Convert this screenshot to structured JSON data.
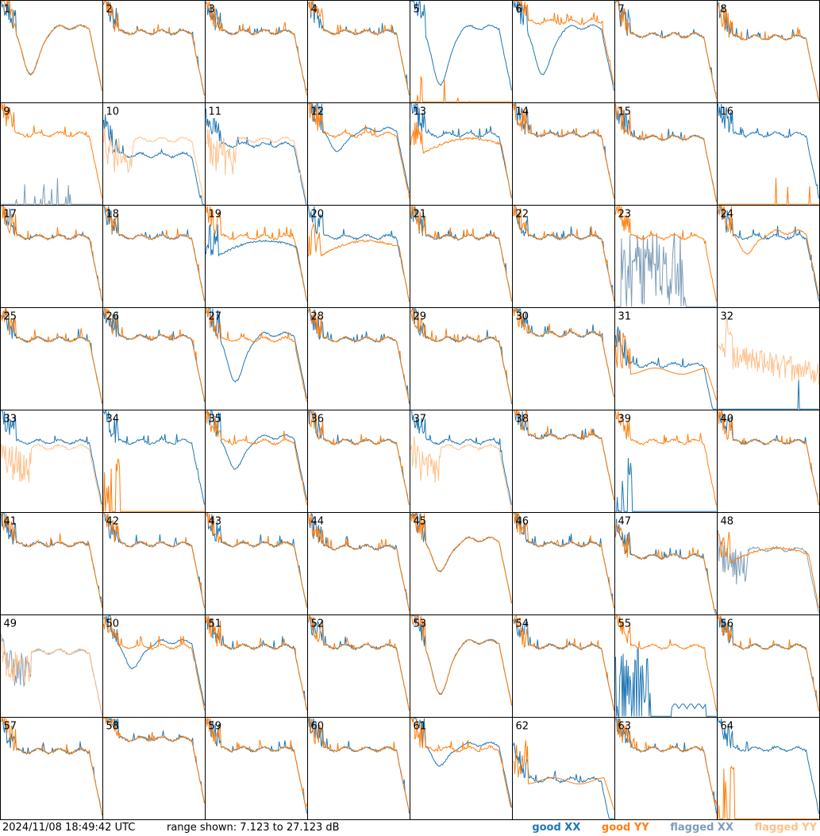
{
  "chart_data": {
    "type": "line",
    "title": "",
    "xlabel": "",
    "ylabel": "",
    "grid_rows": 8,
    "grid_cols": 8,
    "ylim_db": [
      7.123,
      27.123
    ],
    "panels": [
      {
        "id": "1",
        "xx": "bumpy",
        "yy": "bumpy",
        "dip": 0.45,
        "offset": 0.05
      },
      {
        "id": "2",
        "xx": "good",
        "yy": "good",
        "offset": 0.0
      },
      {
        "id": "3",
        "xx": "good",
        "yy": "good",
        "offset": 0.0
      },
      {
        "id": "4",
        "xx": "good",
        "yy": "good",
        "offset": 0.0
      },
      {
        "id": "5",
        "xx": "bumpy",
        "yy": "dead",
        "dip": 0.55
      },
      {
        "id": "6",
        "xx": "bumpy",
        "yy": "good",
        "dip": 0.45,
        "offset": -0.1
      },
      {
        "id": "7",
        "xx": "good",
        "yy": "good",
        "offset": 0.03
      },
      {
        "id": "8",
        "xx": "good",
        "yy": "good",
        "offset": 0.05
      },
      {
        "id": "9",
        "xx": "flagged_spikes",
        "yy": "good"
      },
      {
        "id": "10",
        "xx": "good",
        "yy": "flagged",
        "offset": 0.2
      },
      {
        "id": "11",
        "xx": "good",
        "yy": "flagged",
        "offset": 0.1
      },
      {
        "id": "12",
        "xx": "bumpy",
        "yy": "good",
        "dip": 0.2
      },
      {
        "id": "13",
        "xx": "good",
        "yy": "sloped"
      },
      {
        "id": "14",
        "xx": "good",
        "yy": "good",
        "offset": 0.0
      },
      {
        "id": "15",
        "xx": "good",
        "yy": "good",
        "offset": 0.03
      },
      {
        "id": "16",
        "xx": "good",
        "yy": "dead"
      },
      {
        "id": "17",
        "xx": "good",
        "yy": "good",
        "offset": 0.0
      },
      {
        "id": "18",
        "xx": "good",
        "yy": "good",
        "offset": 0.0
      },
      {
        "id": "19",
        "xx": "sloped",
        "yy": "good"
      },
      {
        "id": "20",
        "xx": "good",
        "yy": "sloped"
      },
      {
        "id": "21",
        "xx": "good",
        "yy": "good",
        "offset": 0.0
      },
      {
        "id": "22",
        "xx": "good",
        "yy": "good",
        "offset": 0.0
      },
      {
        "id": "23",
        "xx": "flagged_noise",
        "yy": "good"
      },
      {
        "id": "24",
        "xx": "good",
        "yy": "bumpy",
        "dip": 0.2
      },
      {
        "id": "25",
        "xx": "good",
        "yy": "good",
        "offset": 0.0
      },
      {
        "id": "26",
        "xx": "good",
        "yy": "good",
        "offset": -0.02
      },
      {
        "id": "27",
        "xx": "bumpy",
        "yy": "good",
        "dip": 0.45
      },
      {
        "id": "28",
        "xx": "good",
        "yy": "good",
        "offset": 0.0
      },
      {
        "id": "29",
        "xx": "good",
        "yy": "good",
        "offset": 0.0
      },
      {
        "id": "30",
        "xx": "good",
        "yy": "good",
        "offset": -0.05
      },
      {
        "id": "31",
        "xx": "good",
        "yy": "low",
        "offset": 0.25
      },
      {
        "id": "32",
        "xx": "dead",
        "yy": "flagged_noise2"
      },
      {
        "id": "33",
        "xx": "good",
        "yy": "flagged",
        "offset": 0.0
      },
      {
        "id": "34",
        "xx": "good",
        "yy": "dead_spike"
      },
      {
        "id": "35",
        "xx": "bumpy",
        "yy": "good",
        "dip": 0.3
      },
      {
        "id": "36",
        "xx": "good",
        "yy": "good",
        "offset": 0.0
      },
      {
        "id": "37",
        "xx": "good",
        "yy": "flagged",
        "offset": 0.0
      },
      {
        "id": "38",
        "xx": "good",
        "yy": "good",
        "offset": -0.05
      },
      {
        "id": "39",
        "xx": "dead_spike",
        "yy": "good"
      },
      {
        "id": "40",
        "xx": "good",
        "yy": "good",
        "offset": 0.0
      },
      {
        "id": "41",
        "xx": "good",
        "yy": "good",
        "offset": 0.0
      },
      {
        "id": "42",
        "xx": "good",
        "yy": "good",
        "offset": 0.0
      },
      {
        "id": "43",
        "xx": "good",
        "yy": "good",
        "offset": 0.0
      },
      {
        "id": "44",
        "xx": "good",
        "yy": "good",
        "offset": 0.03
      },
      {
        "id": "45",
        "xx": "bumpy",
        "yy": "bumpy",
        "dip": 0.3
      },
      {
        "id": "46",
        "xx": "good",
        "yy": "good",
        "offset": 0.0
      },
      {
        "id": "47",
        "xx": "good",
        "yy": "good",
        "offset": 0.12
      },
      {
        "id": "48",
        "xx": "flagged",
        "yy": "sloped"
      },
      {
        "id": "49",
        "xx": "flagged",
        "yy": "flagged",
        "offset": 0.0
      },
      {
        "id": "50",
        "xx": "bumpy",
        "yy": "good",
        "dip": 0.25
      },
      {
        "id": "51",
        "xx": "good",
        "yy": "good",
        "offset": 0.0
      },
      {
        "id": "52",
        "xx": "good",
        "yy": "good",
        "offset": 0.0
      },
      {
        "id": "53",
        "xx": "bumpy",
        "yy": "bumpy",
        "dip": 0.5
      },
      {
        "id": "54",
        "xx": "good",
        "yy": "good",
        "offset": 0.0
      },
      {
        "id": "55",
        "xx": "dead_spikes",
        "yy": "good"
      },
      {
        "id": "56",
        "xx": "good",
        "yy": "good",
        "offset": 0.0
      },
      {
        "id": "57",
        "xx": "good",
        "yy": "good",
        "offset": 0.02
      },
      {
        "id": "58",
        "xx": "good",
        "yy": "good",
        "offset": -0.1
      },
      {
        "id": "59",
        "xx": "good",
        "yy": "good",
        "offset": 0.0
      },
      {
        "id": "60",
        "xx": "good",
        "yy": "good",
        "offset": 0.0
      },
      {
        "id": "61",
        "xx": "bumpy",
        "yy": "good",
        "dip": 0.2
      },
      {
        "id": "62",
        "xx": "good",
        "yy": "low",
        "offset": 0.3
      },
      {
        "id": "63",
        "xx": "good",
        "yy": "good",
        "offset": 0.0
      },
      {
        "id": "64",
        "xx": "good",
        "yy": "dead_spike"
      }
    ],
    "legend": [
      {
        "name": "good XX",
        "color": "#1f77b4"
      },
      {
        "name": "good YY",
        "color": "#ff7f0e"
      },
      {
        "name": "flagged XX",
        "color": "#7f9db9"
      },
      {
        "name": "flagged YY",
        "color": "#ffc08c"
      }
    ],
    "legend_placement": "bottom-right"
  },
  "footer": {
    "timestamp": "2024/11/08 18:49:42 UTC",
    "range_text": "range shown: 7.123 to 27.123 dB",
    "legend": {
      "good_xx": "good XX",
      "good_yy": "good YY",
      "flagged_xx": "flagged XX",
      "flagged_yy": "flagged YY"
    }
  },
  "colors": {
    "good_xx": "#1f77b4",
    "good_yy": "#ff7f0e",
    "flagged_xx": "#7f9db9",
    "flagged_yy": "#ffc08c",
    "border": "#000000"
  }
}
